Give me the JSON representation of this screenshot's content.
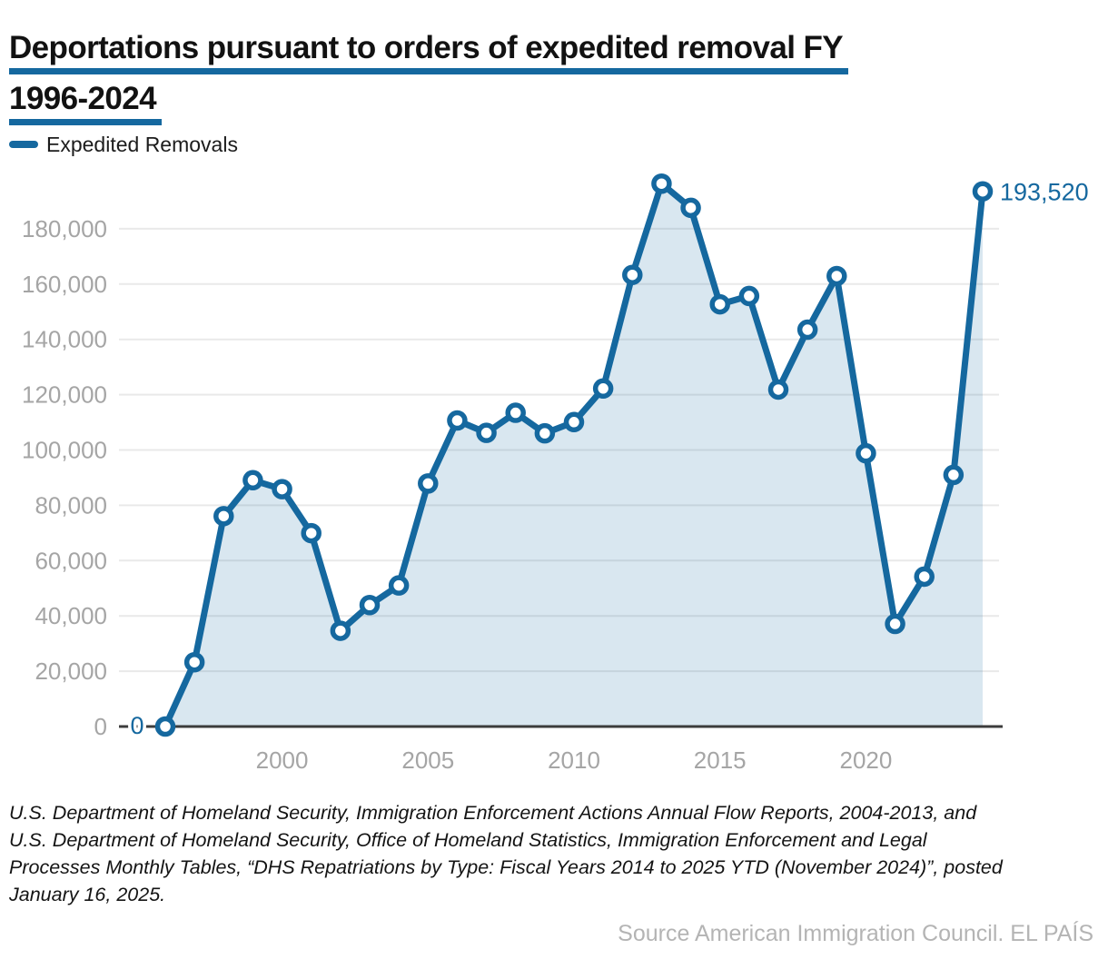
{
  "header": {
    "title_line1": "Deportations pursuant to orders of expedited removal FY",
    "title_line2": "1996-2024"
  },
  "legend": {
    "label": "Expedited Removals"
  },
  "chart_data": {
    "type": "area",
    "title": "Deportations pursuant to orders of expedited removal FY 1996-2024",
    "series_name": "Expedited Removals",
    "x": [
      1996,
      1997,
      1998,
      1999,
      2000,
      2001,
      2002,
      2003,
      2004,
      2005,
      2006,
      2007,
      2008,
      2009,
      2010,
      2011,
      2012,
      2013,
      2014,
      2015,
      2016,
      2017,
      2018,
      2019,
      2020,
      2021,
      2022,
      2023,
      2024
    ],
    "values": [
      0,
      23242,
      76079,
      89065,
      85843,
      69923,
      34624,
      43920,
      51014,
      87888,
      110663,
      106196,
      113462,
      106025,
      110085,
      122236,
      163308,
      196310,
      187580,
      152680,
      155700,
      121850,
      143500,
      162900,
      98800,
      37100,
      54200,
      91000,
      193520
    ],
    "y_tick_values": [
      0,
      20000,
      40000,
      60000,
      80000,
      100000,
      120000,
      140000,
      160000,
      180000
    ],
    "y_tick_labels": [
      "0",
      "20,000",
      "40,000",
      "60,000",
      "80,000",
      "100,000",
      "120,000",
      "140,000",
      "160,000",
      "180,000"
    ],
    "x_tick_years": [
      2000,
      2005,
      2010,
      2015,
      2020
    ],
    "x_tick_labels": [
      "2000",
      "2005",
      "2010",
      "2015",
      "2020"
    ],
    "ylim": [
      0,
      200000
    ],
    "grid": true,
    "legend_position": "top-left",
    "annotations": {
      "first_point_label": "0",
      "last_point_label": "193,520"
    }
  },
  "colors": {
    "accent": "#15689f",
    "area_fill": "rgba(21,104,159,0.16)",
    "grid": "#e9e9e9",
    "axis_line": "#3c3c3c",
    "tick_text": "#a5a5a5",
    "title_text": "#121212",
    "footer_text": "#141414",
    "source_text": "#b4b4b4",
    "marker_fill": "#ffffff"
  },
  "footer": {
    "lines": [
      "U.S. Department of Homeland Security, Immigration Enforcement Actions Annual Flow Reports, 2004-2013, and",
      "U.S. Department of Homeland Security, Office of Homeland Statistics, Immigration Enforcement and Legal",
      "Processes Monthly Tables, “DHS Repatriations by Type: Fiscal Years 2014 to 2025 YTD (November 2024)”, posted",
      "January 16, 2025."
    ],
    "credit": "Source American Immigration Council. EL PAÍS"
  }
}
